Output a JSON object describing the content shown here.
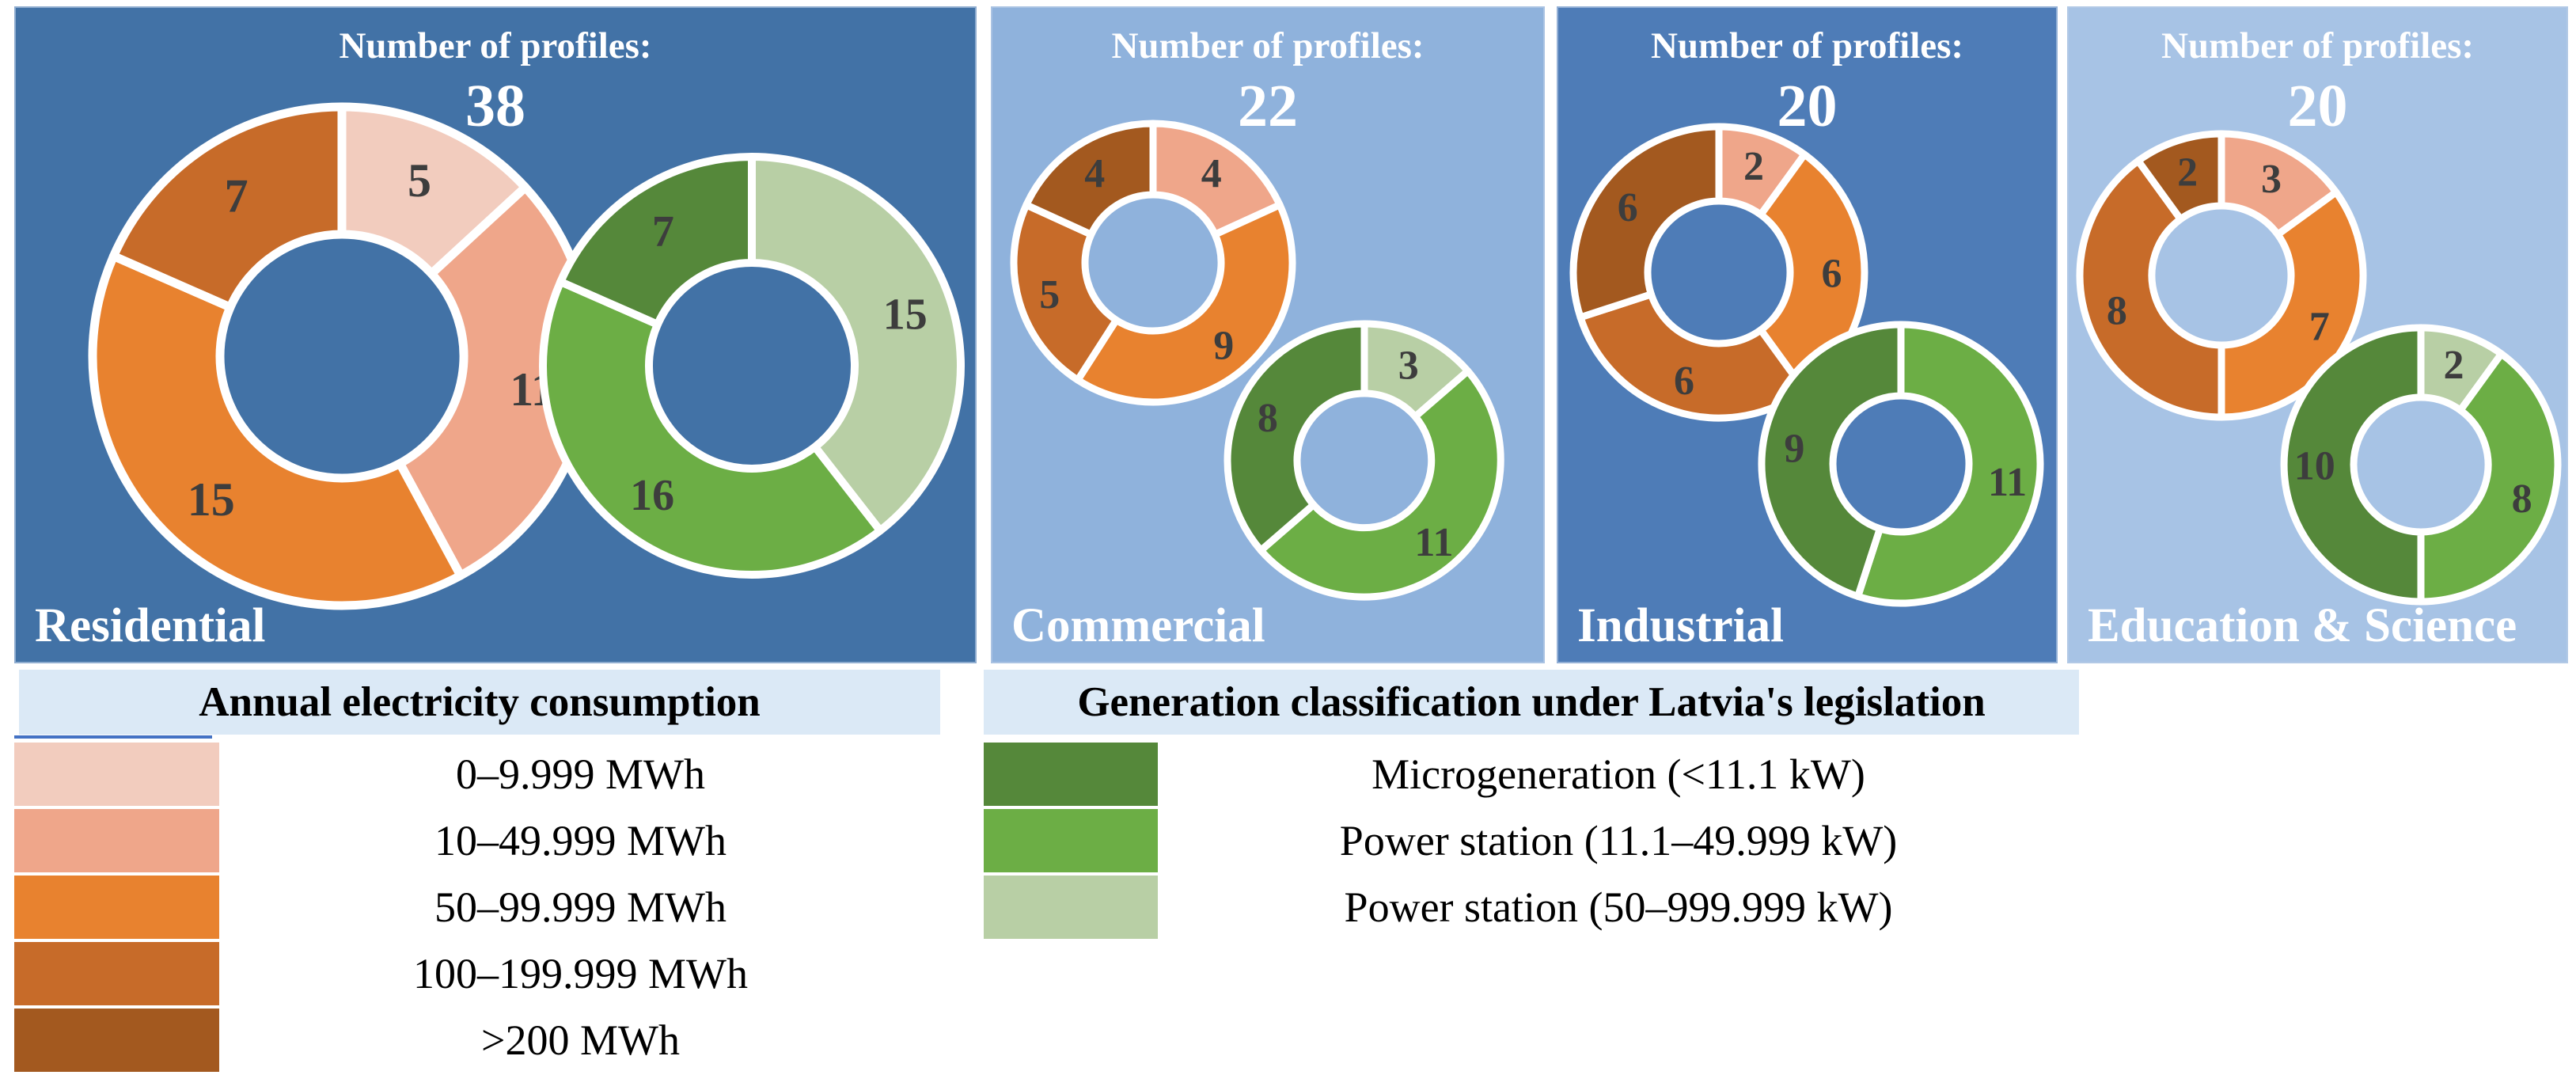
{
  "palette": {
    "consumption_colors": [
      "#f2ccbe",
      "#efa68a",
      "#e8822f",
      "#c76b29",
      "#a3591f"
    ],
    "generation_colors": [
      "#55883a",
      "#6cae45",
      "#b8cfa5"
    ],
    "value_label_color": "#3d3d3d",
    "ring_stroke_color": "#ffffff",
    "legend_header_bg": "#dbe9f6",
    "blue_rule_color": "#4472c4",
    "panel_text_color": "#ffffff"
  },
  "chart_data": [
    {
      "type": "pie",
      "panel": "Residential",
      "profiles_label": "Number of profiles:",
      "number_of_profiles": 38,
      "bg_color": "#4272a6",
      "consumption_ring": {
        "legend": "Annual electricity consumption",
        "slices": [
          {
            "category": "0–9.999 MWh",
            "value": 5,
            "color": "#f2ccbe"
          },
          {
            "category": "10–49.999 MWh",
            "value": 11,
            "color": "#efa68a"
          },
          {
            "category": "50–99.999 MWh",
            "value": 15,
            "color": "#e8822f"
          },
          {
            "category": "100–199.999 MWh",
            "value": 7,
            "color": "#c76b29"
          }
        ]
      },
      "generation_ring": {
        "legend": "Generation classification under Latvia's legislation",
        "slices": [
          {
            "category": "Power station (50–999.999 kW)",
            "value": 15,
            "color": "#b8cfa5"
          },
          {
            "category": "Power station (11.1–49.999 kW)",
            "value": 16,
            "color": "#6cae45"
          },
          {
            "category": "Microgeneration (<11.1 kW)",
            "value": 7,
            "color": "#55883a"
          }
        ]
      }
    },
    {
      "type": "pie",
      "panel": "Commercial",
      "profiles_label": "Number of profiles:",
      "number_of_profiles": 22,
      "bg_color": "#8fb2dc",
      "consumption_ring": {
        "legend": "Annual electricity consumption",
        "slices": [
          {
            "category": "10–49.999 MWh",
            "value": 4,
            "color": "#efa68a"
          },
          {
            "category": "50–99.999 MWh",
            "value": 9,
            "color": "#e8822f"
          },
          {
            "category": "100–199.999 MWh",
            "value": 5,
            "color": "#c76b29"
          },
          {
            "category": ">200 MWh",
            "value": 4,
            "color": "#a3591f"
          }
        ]
      },
      "generation_ring": {
        "legend": "Generation classification under Latvia's legislation",
        "slices": [
          {
            "category": "Power station (50–999.999 kW)",
            "value": 3,
            "color": "#b8cfa5"
          },
          {
            "category": "Power station (11.1–49.999 kW)",
            "value": 11,
            "color": "#6cae45"
          },
          {
            "category": "Microgeneration (<11.1 kW)",
            "value": 8,
            "color": "#55883a"
          }
        ]
      }
    },
    {
      "type": "pie",
      "panel": "Industrial",
      "profiles_label": "Number of profiles:",
      "number_of_profiles": 20,
      "bg_color": "#4e7cb7",
      "consumption_ring": {
        "legend": "Annual electricity consumption",
        "slices": [
          {
            "category": "10–49.999 MWh",
            "value": 2,
            "color": "#efa68a"
          },
          {
            "category": "50–99.999 MWh",
            "value": 6,
            "color": "#e8822f"
          },
          {
            "category": "100–199.999 MWh",
            "value": 6,
            "color": "#c76b29"
          },
          {
            "category": ">200 MWh",
            "value": 6,
            "color": "#a3591f"
          }
        ]
      },
      "generation_ring": {
        "legend": "Generation classification under Latvia's legislation",
        "slices": [
          {
            "category": "Power station (11.1–49.999 kW)",
            "value": 11,
            "color": "#6cae45"
          },
          {
            "category": "Microgeneration (<11.1 kW)",
            "value": 9,
            "color": "#55883a"
          }
        ]
      }
    },
    {
      "type": "pie",
      "panel": "Education & Science",
      "profiles_label": "Number of profiles:",
      "number_of_profiles": 20,
      "bg_color": "#a7c3e5",
      "consumption_ring": {
        "legend": "Annual electricity consumption",
        "slices": [
          {
            "category": "10–49.999 MWh",
            "value": 3,
            "color": "#efa68a"
          },
          {
            "category": "50–99.999 MWh",
            "value": 7,
            "color": "#e8822f"
          },
          {
            "category": "100–199.999 MWh",
            "value": 8,
            "color": "#c76b29"
          },
          {
            "category": ">200 MWh",
            "value": 2,
            "color": "#a3591f"
          }
        ]
      },
      "generation_ring": {
        "legend": "Generation classification under Latvia's legislation",
        "slices": [
          {
            "category": "Power station (50–999.999 kW)",
            "value": 2,
            "color": "#b8cfa5"
          },
          {
            "category": "Power station (11.1–49.999 kW)",
            "value": 8,
            "color": "#6cae45"
          },
          {
            "category": "Microgeneration (<11.1 kW)",
            "value": 10,
            "color": "#55883a"
          }
        ]
      }
    }
  ],
  "legends": {
    "consumption": {
      "title": "Annual electricity consumption",
      "items": [
        {
          "range": "0–9.999 MWh",
          "color": "#f2ccbe"
        },
        {
          "range": "10–49.999 MWh",
          "color": "#efa68a"
        },
        {
          "range": "50–99.999 MWh",
          "color": "#e8822f"
        },
        {
          "range": "100–199.999 MWh",
          "color": "#c76b29"
        },
        {
          "range": ">200 MWh",
          "color": "#a3591f"
        }
      ]
    },
    "generation": {
      "title": "Generation classification under Latvia's legislation",
      "items": [
        {
          "range": "Microgeneration (<11.1 kW)",
          "color": "#55883a"
        },
        {
          "range": "Power station (11.1–49.999 kW)",
          "color": "#6cae45"
        },
        {
          "range": "Power station (50–999.999 kW)",
          "color": "#b8cfa5"
        }
      ]
    }
  }
}
